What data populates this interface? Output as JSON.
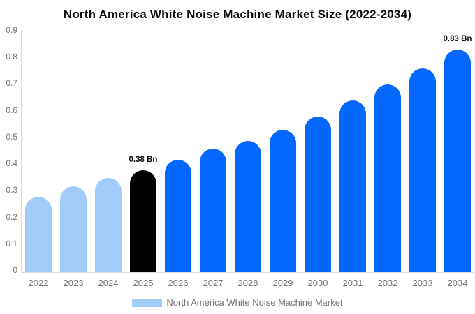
{
  "chart_data": {
    "type": "bar",
    "title": "North America White Noise Machine Market Size (2022-2034)",
    "categories": [
      "2022",
      "2023",
      "2024",
      "2025",
      "2026",
      "2027",
      "2028",
      "2029",
      "2030",
      "2031",
      "2032",
      "2033",
      "2034"
    ],
    "values": [
      0.28,
      0.32,
      0.35,
      0.38,
      0.42,
      0.46,
      0.49,
      0.53,
      0.58,
      0.64,
      0.7,
      0.76,
      0.83
    ],
    "unit": "Bn",
    "xlabel": "",
    "ylabel": "",
    "ylim": [
      0,
      0.9
    ],
    "yticks": [
      "0",
      "0.1",
      "0.2",
      "0.3",
      "0.4",
      "0.5",
      "0.6",
      "0.7",
      "0.8",
      "0.9"
    ],
    "grid": false,
    "bar_colors": [
      "#A4CCFA",
      "#A4CCFA",
      "#A4CCFA",
      "#000000",
      "#0568FC",
      "#0568FC",
      "#0568FC",
      "#0568FC",
      "#0568FC",
      "#0568FC",
      "#0568FC",
      "#0568FC",
      "#0568FC"
    ],
    "color_meaning": {
      "#A4CCFA": "historical-years",
      "#000000": "base-year",
      "#0568FC": "forecast-years"
    },
    "annotations": [
      {
        "category": "2025",
        "text": "0.38 Bn"
      },
      {
        "category": "2034",
        "text": "0.83 Bn"
      }
    ],
    "legend": [
      {
        "label": "North America White Noise Machine Market",
        "color": "#A4CCFA",
        "position": "bottom"
      }
    ],
    "style": {
      "title_text_color": "#0a0a0a",
      "axis_text_color": "#737373",
      "axis_line_color": "#dadada",
      "background": "#ffffff"
    }
  }
}
